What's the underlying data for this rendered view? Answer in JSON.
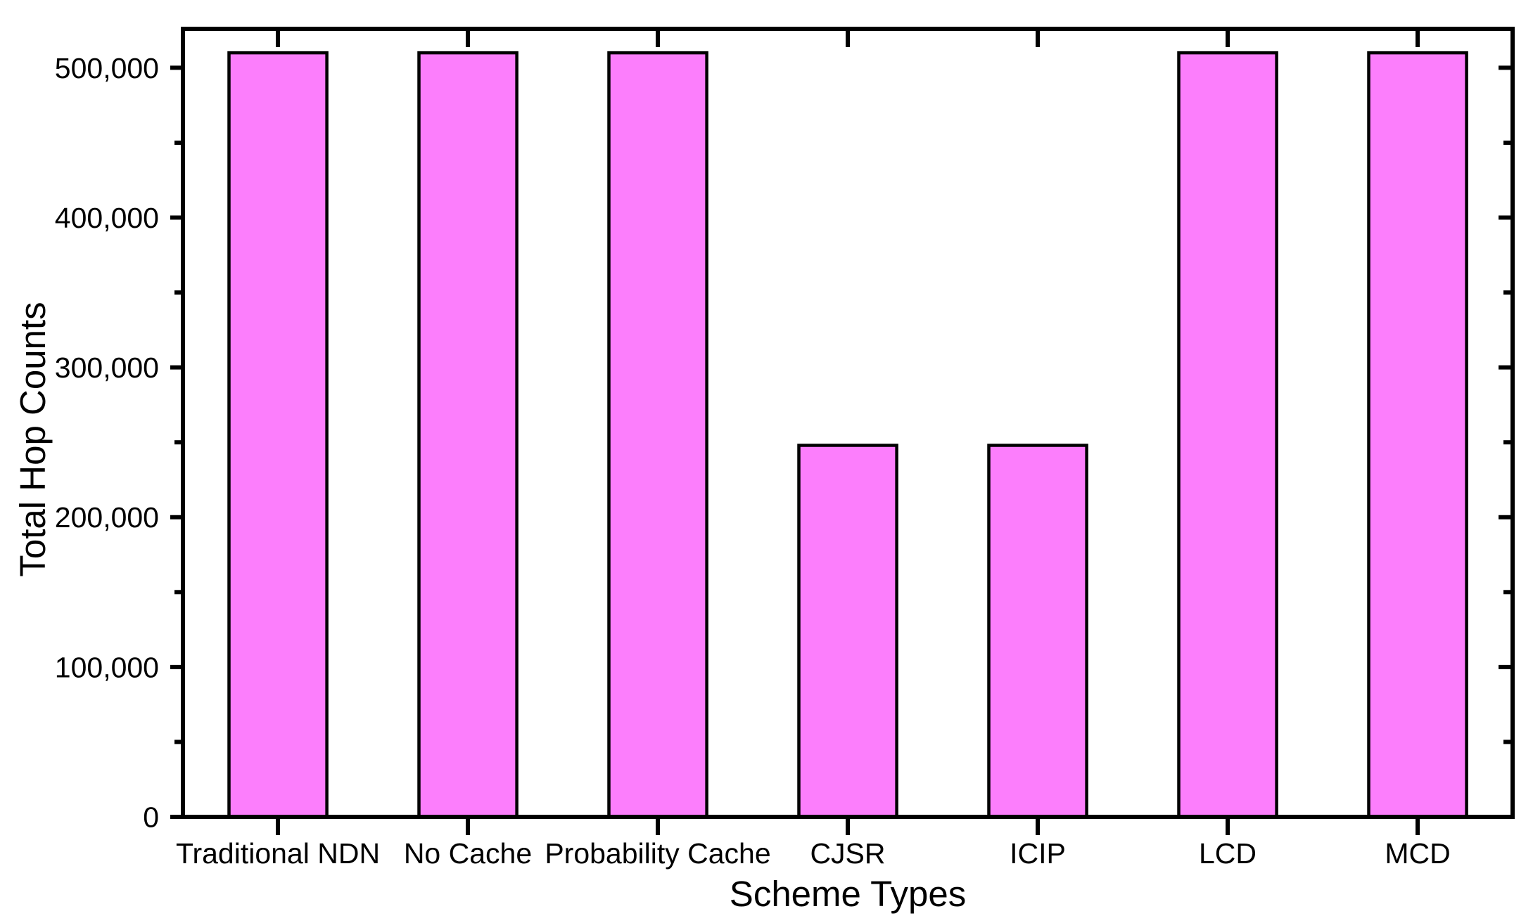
{
  "chart_data": {
    "type": "bar",
    "title": "",
    "xlabel": "Scheme Types",
    "ylabel": "Total Hop Counts",
    "categories": [
      "Traditional NDN",
      "No Cache",
      "Probability Cache",
      "CJSR",
      "ICIP",
      "LCD",
      "MCD"
    ],
    "values": [
      510000,
      510000,
      510000,
      248000,
      248000,
      510000,
      510000
    ],
    "ylim": [
      0,
      526000
    ],
    "y_major_ticks": [
      0,
      100000,
      200000,
      300000,
      400000,
      500000
    ],
    "y_major_tick_labels": [
      "0",
      "100,000",
      "200,000",
      "300,000",
      "400,000",
      "500,000"
    ],
    "y_minor_ticks": [
      50000,
      150000,
      250000,
      350000,
      450000
    ],
    "bar_fill": "#FC7EFC",
    "bar_stroke": "#000000",
    "axis_color": "#000000",
    "text_color": "#000000",
    "background": "#FFFFFF",
    "grid": false,
    "legend": "none",
    "bar_width_frac": 0.515
  }
}
